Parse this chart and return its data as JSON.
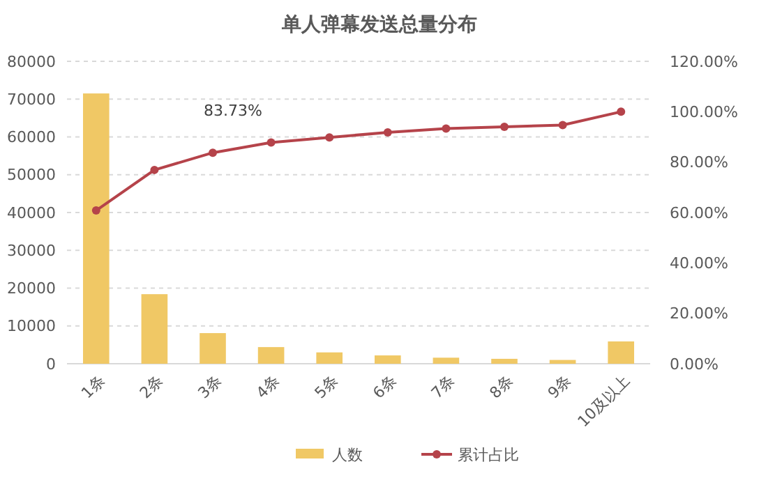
{
  "chart_data": {
    "type": "bar",
    "title": "单人弹幕发送总量分布",
    "categories": [
      "1条",
      "2条",
      "3条",
      "4条",
      "5条",
      "6条",
      "7条",
      "8条",
      "9条",
      "10及以上"
    ],
    "series": [
      {
        "name": "人数",
        "color": "#f0c865",
        "values": [
          71500,
          18400,
          8100,
          4400,
          3000,
          2200,
          1600,
          1300,
          1000,
          5900
        ]
      },
      {
        "name": "累计占比",
        "type": "line",
        "axis": "y2",
        "color": "#b5434a",
        "marker": "circle",
        "values": [
          60.8,
          76.9,
          83.73,
          87.8,
          89.8,
          91.8,
          93.3,
          94.0,
          94.7,
          100
        ]
      }
    ],
    "ylim": [
      0,
      80000
    ],
    "yticks": [
      0,
      10000,
      20000,
      30000,
      40000,
      50000,
      60000,
      70000,
      80000
    ],
    "y2lim": [
      0,
      120
    ],
    "y2ticks": [
      {
        "value": 0,
        "label": "0.00%"
      },
      {
        "value": 20,
        "label": "20.00%"
      },
      {
        "value": 40,
        "label": "40.00%"
      },
      {
        "value": 60,
        "label": "60.00%"
      },
      {
        "value": 80,
        "label": "80.00%"
      },
      {
        "value": 100,
        "label": "100.00%"
      },
      {
        "value": 120,
        "label": "120.00%"
      }
    ],
    "annotations": [
      "83.73%"
    ],
    "grid": "y",
    "legend": "bottom"
  }
}
